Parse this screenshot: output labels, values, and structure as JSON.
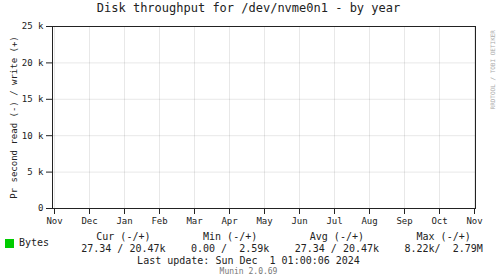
{
  "chart_data": {
    "type": "line",
    "title": "Disk throughput for /dev/nvme0n1 - by year",
    "y_label": "Pr second read (-) / write (+)",
    "categories": [
      "Nov",
      "Dec",
      "Jan",
      "Feb",
      "Mar",
      "Apr",
      "May",
      "Jun",
      "Jul",
      "Aug",
      "Sep",
      "Oct",
      "Nov"
    ],
    "series": [
      {
        "name": "Bytes",
        "color": "#00cc00",
        "values": [
          null,
          null,
          null,
          null,
          null,
          null,
          null,
          null,
          null,
          null,
          null,
          null,
          null
        ]
      }
    ],
    "ylim": [
      0,
      25000
    ],
    "yticks": [
      0,
      {
        "value": 5000,
        "label": "5 k"
      },
      {
        "value": 10000,
        "label": "10 k"
      },
      {
        "value": 15000,
        "label": "15 k"
      },
      {
        "value": 20000,
        "label": "20 k"
      },
      {
        "value": 25000,
        "label": "25 k"
      }
    ],
    "grid": true,
    "legend": "lower left",
    "annotations": [
      "Cur (-/+)",
      "Min (-/+)",
      "Avg (-/+)",
      "Max (-/+)",
      "27.34 / 20.47k",
      "0.00 /  2.59k",
      "27.34 / 20.47k",
      "8.22k/  2.79M",
      "Last update: Sun Dec  1 01:00:06 2024",
      "Munin 2.0.69",
      "RRDTOOL / TOBI OETIKER"
    ]
  }
}
